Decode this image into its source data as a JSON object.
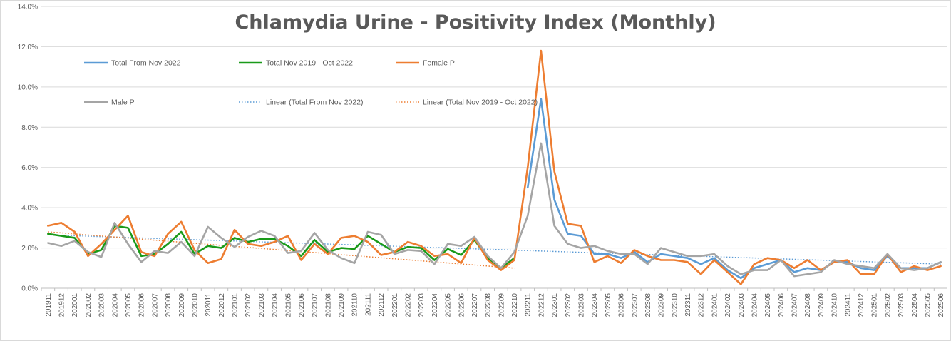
{
  "chart_data": {
    "type": "line",
    "title": "Chlamydia Urine - Positivity Index (Monthly)",
    "xlabel": "",
    "ylabel": "",
    "ylim": [
      0,
      14
    ],
    "y_ticks": [
      0,
      2,
      4,
      6,
      8,
      10,
      12,
      14
    ],
    "y_tick_labels": [
      "0.0%",
      "2.0%",
      "4.0%",
      "6.0%",
      "8.0%",
      "10.0%",
      "12.0%",
      "14.0%"
    ],
    "grid": "horizontal",
    "legend_position": "top-left (inside plot)",
    "categories": [
      "201911",
      "201912",
      "202001",
      "202002",
      "202003",
      "202004",
      "202005",
      "202006",
      "202007",
      "202008",
      "202009",
      "202010",
      "202011",
      "202012",
      "202101",
      "202102",
      "202103",
      "202104",
      "202105",
      "202106",
      "202107",
      "202108",
      "202109",
      "202110",
      "202111",
      "202112",
      "202201",
      "202202",
      "202203",
      "202204",
      "202205",
      "202206",
      "202207",
      "202208",
      "202209",
      "202210",
      "202211",
      "202212",
      "202301",
      "202302",
      "202303",
      "202304",
      "202305",
      "202306",
      "202307",
      "202308",
      "202309",
      "202310",
      "202311",
      "202312",
      "202401",
      "202402",
      "202403",
      "202404",
      "202405",
      "202406",
      "202407",
      "202408",
      "202409",
      "202410",
      "202411",
      "202412",
      "202501",
      "202502",
      "202503",
      "202504",
      "202505",
      "202506"
    ],
    "series": [
      {
        "name": "Total From Nov 2022",
        "color": "#5B9BD5",
        "style": "solid",
        "values": [
          null,
          null,
          null,
          null,
          null,
          null,
          null,
          null,
          null,
          null,
          null,
          null,
          null,
          null,
          null,
          null,
          null,
          null,
          null,
          null,
          null,
          null,
          null,
          null,
          null,
          null,
          null,
          null,
          null,
          null,
          null,
          null,
          null,
          null,
          null,
          null,
          5.0,
          9.4,
          4.4,
          2.7,
          2.6,
          1.7,
          1.7,
          1.5,
          1.8,
          1.3,
          1.7,
          1.6,
          1.5,
          1.2,
          1.5,
          0.9,
          0.5,
          1.0,
          1.2,
          1.4,
          0.8,
          1.0,
          0.9,
          1.3,
          1.3,
          1.0,
          0.9,
          1.6,
          1.0,
          1.0,
          1.0,
          1.3
        ]
      },
      {
        "name": "Total Nov 2019 - Oct 2022",
        "color": "#1A9A1A",
        "style": "solid",
        "values": [
          2.7,
          2.6,
          2.5,
          1.7,
          1.9,
          3.1,
          3.0,
          1.6,
          1.7,
          2.2,
          2.8,
          1.7,
          2.1,
          2.0,
          2.5,
          2.3,
          2.45,
          2.45,
          2.1,
          1.6,
          2.4,
          1.8,
          2.0,
          1.95,
          2.6,
          2.2,
          1.8,
          2.05,
          2.0,
          1.4,
          1.95,
          1.65,
          2.4,
          1.5,
          1.0,
          1.5,
          null,
          null,
          null,
          null,
          null,
          null,
          null,
          null,
          null,
          null,
          null,
          null,
          null,
          null,
          null,
          null,
          null,
          null,
          null,
          null,
          null,
          null,
          null,
          null,
          null,
          null,
          null,
          null,
          null,
          null,
          null,
          null
        ]
      },
      {
        "name": "Female P",
        "color": "#ED7D31",
        "style": "solid",
        "values": [
          3.1,
          3.25,
          2.8,
          1.6,
          2.2,
          2.9,
          3.6,
          1.8,
          1.6,
          2.7,
          3.3,
          1.9,
          1.25,
          1.45,
          2.9,
          2.2,
          2.1,
          2.3,
          2.6,
          1.4,
          2.2,
          1.7,
          2.5,
          2.6,
          2.3,
          1.65,
          1.8,
          2.3,
          2.1,
          1.6,
          1.7,
          1.25,
          2.5,
          1.4,
          0.9,
          1.4,
          6.0,
          11.8,
          5.8,
          3.2,
          3.1,
          1.3,
          1.6,
          1.25,
          1.9,
          1.6,
          1.4,
          1.4,
          1.3,
          0.7,
          1.4,
          0.8,
          0.2,
          1.2,
          1.5,
          1.4,
          1.0,
          1.4,
          0.9,
          1.3,
          1.4,
          0.7,
          0.7,
          1.7,
          0.8,
          1.1,
          0.9,
          1.1
        ]
      },
      {
        "name": "Male P",
        "color": "#A5A5A5",
        "style": "solid",
        "values": [
          2.25,
          2.1,
          2.35,
          1.8,
          1.55,
          3.25,
          2.2,
          1.3,
          1.85,
          1.75,
          2.3,
          1.6,
          3.05,
          2.5,
          2.05,
          2.55,
          2.85,
          2.6,
          1.75,
          1.85,
          2.75,
          1.9,
          1.5,
          1.25,
          2.8,
          2.65,
          1.7,
          1.9,
          1.85,
          1.2,
          2.2,
          2.1,
          2.55,
          1.6,
          1.0,
          1.8,
          3.6,
          7.2,
          3.1,
          2.2,
          2.0,
          2.1,
          1.85,
          1.7,
          1.7,
          1.2,
          2.0,
          1.8,
          1.6,
          1.6,
          1.7,
          1.1,
          0.7,
          0.9,
          0.9,
          1.4,
          0.6,
          0.7,
          0.8,
          1.4,
          1.2,
          1.1,
          1.0,
          1.7,
          1.0,
          0.9,
          1.0,
          1.3
        ]
      },
      {
        "name": "Linear (Total From Nov 2022)",
        "color": "#5B9BD5",
        "style": "dotted",
        "trend": {
          "from": "201911",
          "to": "202506",
          "start": 2.65,
          "end": 1.2
        }
      },
      {
        "name": "Linear (Total Nov 2019 - Oct 2022)",
        "color": "#ED7D31",
        "style": "dotted",
        "trend": {
          "from": "201911",
          "to": "202210",
          "start": 2.8,
          "end": 1.0
        }
      }
    ]
  }
}
